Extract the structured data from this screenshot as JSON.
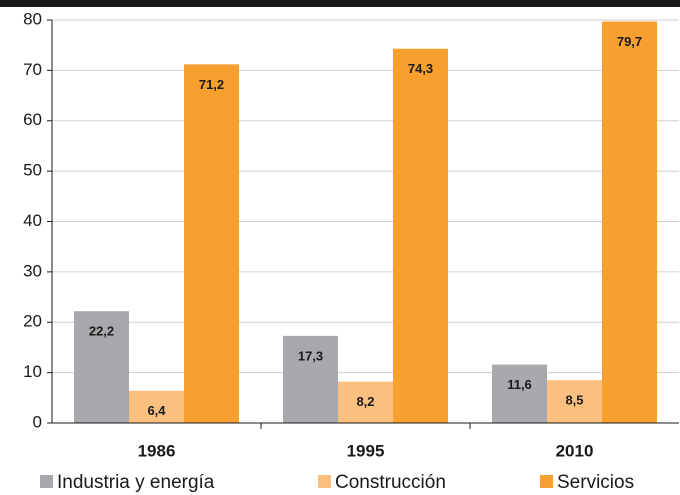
{
  "chart_data": {
    "type": "bar",
    "categories": [
      "1986",
      "1995",
      "2010"
    ],
    "series": [
      {
        "name": "Industria y energía",
        "color": "#a7a9ac",
        "values": [
          22.2,
          17.3,
          11.6
        ],
        "value_labels": [
          "22,2",
          "17,3",
          "11,6"
        ]
      },
      {
        "name": "Construcción",
        "color": "#fbc07f",
        "values": [
          6.4,
          8.2,
          8.5
        ],
        "value_labels": [
          "6,4",
          "8,2",
          "8,5"
        ]
      },
      {
        "name": "Servicios",
        "color": "#f7a030",
        "values": [
          71.2,
          74.3,
          79.7
        ],
        "value_labels": [
          "71,2",
          "74,3",
          "79,7"
        ]
      }
    ],
    "ylim": [
      0,
      80
    ],
    "yticks": [
      0,
      10,
      20,
      30,
      40,
      50,
      60,
      70,
      80
    ],
    "grid": true,
    "legend": "bottom"
  }
}
